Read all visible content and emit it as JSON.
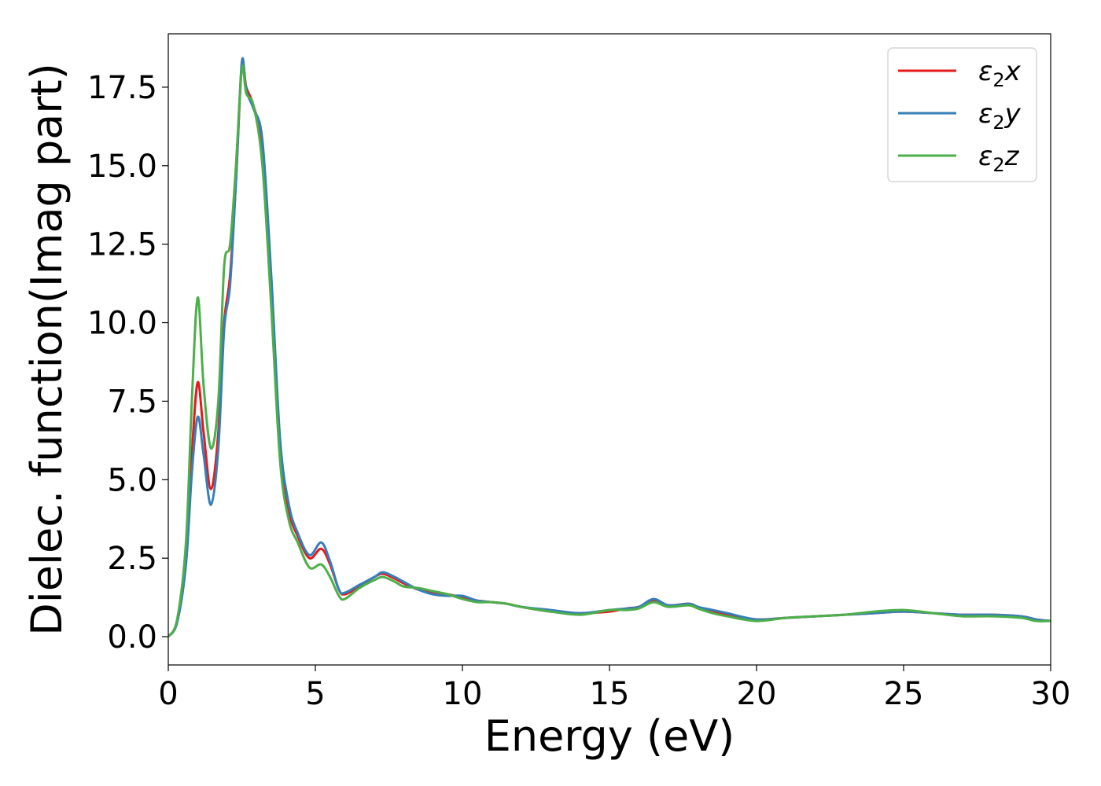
{
  "chart_data": {
    "type": "line",
    "title": "",
    "xlabel": "Energy (eV)",
    "ylabel": "Dielec. function(Imag part)",
    "xlim": [
      0,
      30
    ],
    "ylim": [
      -0.9,
      19.2
    ],
    "xticks": [
      0,
      5,
      10,
      15,
      20,
      25,
      30
    ],
    "xtick_labels": [
      "0",
      "5",
      "10",
      "15",
      "20",
      "25",
      "30"
    ],
    "yticks": [
      0.0,
      2.5,
      5.0,
      7.5,
      10.0,
      12.5,
      15.0,
      17.5
    ],
    "ytick_labels": [
      "0.0",
      "2.5",
      "5.0",
      "7.5",
      "10.0",
      "12.5",
      "15.0",
      "17.5"
    ],
    "grid": false,
    "legend_position": "top-right",
    "series": [
      {
        "name": "ε2x",
        "color": "#e41a1c",
        "x": [
          0,
          0.3,
          0.6,
          0.8,
          1.0,
          1.2,
          1.45,
          1.7,
          1.9,
          2.1,
          2.3,
          2.5,
          2.65,
          2.9,
          3.2,
          3.5,
          3.8,
          4.1,
          4.4,
          4.8,
          5.2,
          5.5,
          5.8,
          6.0,
          6.5,
          7.0,
          7.3,
          7.7,
          8.0,
          8.5,
          9.0,
          9.5,
          10.0,
          10.5,
          11.0,
          11.5,
          12.0,
          13.0,
          14.0,
          15.0,
          15.6,
          16.0,
          16.5,
          17.0,
          17.7,
          18.0,
          18.5,
          19.0,
          20.0,
          21.0,
          22.0,
          23.0,
          24.0,
          25.0,
          26.0,
          27.0,
          28.0,
          29.0,
          29.5,
          30.0
        ],
        "y": [
          0.0,
          0.5,
          2.5,
          5.8,
          8.1,
          6.5,
          4.7,
          6.5,
          10.0,
          11.5,
          14.5,
          18.2,
          17.5,
          16.9,
          15.5,
          11.0,
          6.0,
          4.0,
          3.2,
          2.5,
          2.8,
          2.3,
          1.5,
          1.35,
          1.6,
          1.9,
          2.0,
          1.85,
          1.7,
          1.5,
          1.4,
          1.35,
          1.25,
          1.15,
          1.1,
          1.05,
          0.95,
          0.8,
          0.75,
          0.8,
          0.9,
          0.95,
          1.15,
          1.0,
          1.05,
          0.95,
          0.8,
          0.7,
          0.55,
          0.6,
          0.65,
          0.7,
          0.75,
          0.8,
          0.75,
          0.7,
          0.7,
          0.65,
          0.55,
          0.5
        ]
      },
      {
        "name": "ε2y",
        "color": "#377eb8",
        "x": [
          0,
          0.3,
          0.6,
          0.8,
          1.0,
          1.2,
          1.45,
          1.7,
          1.9,
          2.1,
          2.3,
          2.5,
          2.65,
          2.9,
          3.2,
          3.5,
          3.8,
          4.1,
          4.4,
          4.8,
          5.2,
          5.5,
          5.8,
          6.0,
          6.5,
          7.0,
          7.3,
          7.7,
          8.0,
          8.5,
          9.0,
          9.5,
          10.0,
          10.5,
          11.0,
          11.5,
          12.0,
          13.0,
          14.0,
          15.0,
          15.6,
          16.0,
          16.5,
          17.0,
          17.7,
          18.0,
          18.5,
          19.0,
          20.0,
          21.0,
          22.0,
          23.0,
          24.0,
          25.0,
          26.0,
          27.0,
          28.0,
          29.0,
          29.5,
          30.0
        ],
        "y": [
          0.0,
          0.45,
          2.3,
          5.2,
          7.0,
          5.8,
          4.2,
          6.0,
          9.8,
          11.2,
          14.5,
          18.3,
          17.4,
          16.8,
          15.8,
          11.5,
          6.3,
          4.2,
          3.3,
          2.6,
          3.0,
          2.4,
          1.5,
          1.4,
          1.65,
          1.9,
          2.05,
          1.9,
          1.75,
          1.5,
          1.35,
          1.3,
          1.3,
          1.15,
          1.1,
          1.05,
          0.95,
          0.85,
          0.75,
          0.85,
          0.9,
          0.95,
          1.2,
          1.0,
          1.05,
          0.95,
          0.85,
          0.75,
          0.55,
          0.6,
          0.65,
          0.7,
          0.75,
          0.8,
          0.75,
          0.7,
          0.7,
          0.65,
          0.55,
          0.5
        ]
      },
      {
        "name": "ε2z",
        "color": "#4daf4a",
        "x": [
          0,
          0.3,
          0.6,
          0.8,
          1.0,
          1.2,
          1.45,
          1.7,
          1.9,
          2.1,
          2.3,
          2.5,
          2.65,
          2.9,
          3.2,
          3.5,
          3.8,
          4.1,
          4.4,
          4.8,
          5.2,
          5.5,
          5.8,
          6.0,
          6.5,
          7.0,
          7.3,
          7.7,
          8.0,
          8.5,
          9.0,
          9.5,
          10.0,
          10.5,
          11.0,
          11.5,
          12.0,
          13.0,
          14.0,
          15.0,
          15.6,
          16.0,
          16.5,
          17.0,
          17.7,
          18.0,
          18.5,
          19.0,
          20.0,
          21.0,
          22.0,
          23.0,
          24.0,
          25.0,
          26.0,
          27.0,
          28.0,
          29.0,
          29.5,
          30.0
        ],
        "y": [
          0.0,
          0.55,
          3.0,
          7.5,
          10.8,
          8.0,
          6.0,
          7.5,
          11.8,
          12.5,
          15.0,
          18.1,
          17.3,
          16.9,
          15.0,
          10.5,
          5.6,
          3.7,
          3.0,
          2.2,
          2.3,
          1.9,
          1.3,
          1.2,
          1.55,
          1.8,
          1.9,
          1.75,
          1.6,
          1.55,
          1.45,
          1.35,
          1.2,
          1.1,
          1.1,
          1.05,
          0.95,
          0.8,
          0.7,
          0.85,
          0.85,
          0.9,
          1.1,
          0.95,
          1.0,
          0.9,
          0.75,
          0.65,
          0.5,
          0.6,
          0.65,
          0.7,
          0.8,
          0.85,
          0.75,
          0.65,
          0.65,
          0.6,
          0.5,
          0.5
        ]
      }
    ]
  }
}
